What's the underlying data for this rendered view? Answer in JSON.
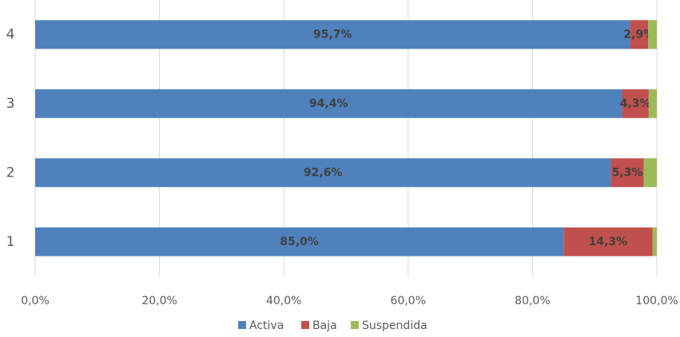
{
  "chart_data": {
    "type": "stacked_barh",
    "categories": [
      "1",
      "2",
      "3",
      "4"
    ],
    "series": [
      {
        "name": "Activa",
        "color": "#4f81bd",
        "values": [
          85.0,
          92.6,
          94.4,
          95.7
        ],
        "value_labels": [
          "85,0%",
          "92,6%",
          "94,4%",
          "95,7%"
        ]
      },
      {
        "name": "Baja",
        "color": "#c0504d",
        "values": [
          14.3,
          5.3,
          4.3,
          2.9
        ],
        "value_labels": [
          "14,3%",
          "5,3%",
          "4,3%",
          "2,9%"
        ]
      },
      {
        "name": "Suspendida",
        "color": "#9bbb59",
        "values": [
          0.7,
          2.1,
          1.3,
          1.4
        ]
      }
    ],
    "xlim": [
      0,
      100
    ],
    "xticks": [
      {
        "value": 0,
        "label": "0,0%"
      },
      {
        "value": 20,
        "label": "20,0%"
      },
      {
        "value": 40,
        "label": "40,0%"
      },
      {
        "value": 60,
        "label": "60,0%"
      },
      {
        "value": 80,
        "label": "80,0%"
      },
      {
        "value": 100,
        "label": "100,0%"
      }
    ],
    "grid": true,
    "legend": "bottom"
  }
}
